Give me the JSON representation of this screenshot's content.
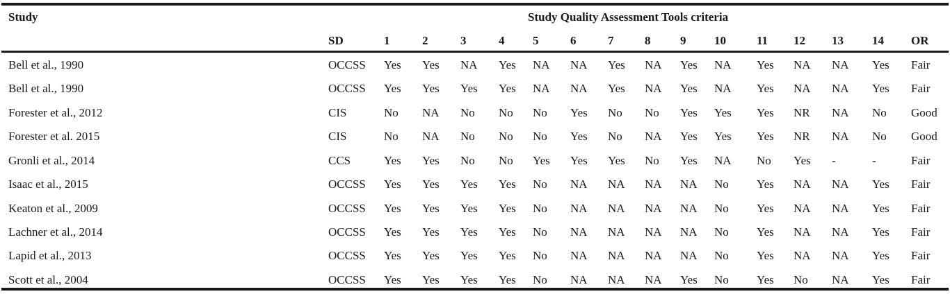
{
  "table": {
    "study_header": "Study",
    "group_header": "Study Quality Assessment Tools criteria",
    "columns": [
      "SD",
      "1",
      "2",
      "3",
      "4",
      "5",
      "6",
      "7",
      "8",
      "9",
      "10",
      "11",
      "12",
      "13",
      "14",
      "OR"
    ],
    "rows": [
      {
        "study": "Bell et al., 1990",
        "cells": [
          "OCCSS",
          "Yes",
          "Yes",
          "NA",
          "Yes",
          "NA",
          "NA",
          "Yes",
          "NA",
          "Yes",
          "NA",
          "Yes",
          "NA",
          "NA",
          "Yes",
          "Fair"
        ]
      },
      {
        "study": "Bell et al., 1990",
        "cells": [
          "OCCSS",
          "Yes",
          "Yes",
          "Yes",
          "Yes",
          "NA",
          "NA",
          "Yes",
          "NA",
          "Yes",
          "NA",
          "Yes",
          "NA",
          "NA",
          "Yes",
          "Fair"
        ]
      },
      {
        "study": "Forester et al., 2012",
        "cells": [
          "CIS",
          "No",
          "NA",
          "No",
          "No",
          "No",
          "Yes",
          "No",
          "No",
          "Yes",
          "Yes",
          "Yes",
          "NR",
          "NA",
          "No",
          "Good"
        ]
      },
      {
        "study": "Forester et al. 2015",
        "cells": [
          "CIS",
          "No",
          "NA",
          "No",
          "No",
          "No",
          "Yes",
          "No",
          "NA",
          "Yes",
          "Yes",
          "Yes",
          "NR",
          "NA",
          "No",
          "Good"
        ]
      },
      {
        "study": "Gronli et al., 2014",
        "cells": [
          "CCS",
          "Yes",
          "Yes",
          "No",
          "No",
          "Yes",
          "Yes",
          "Yes",
          "No",
          "Yes",
          "NA",
          "No",
          "Yes",
          "-",
          "-",
          "Fair"
        ]
      },
      {
        "study": "Isaac et al., 2015",
        "cells": [
          "OCCSS",
          "Yes",
          "Yes",
          "Yes",
          "Yes",
          "No",
          "NA",
          "NA",
          "NA",
          "NA",
          "No",
          "Yes",
          "NA",
          "NA",
          "Yes",
          "Fair"
        ]
      },
      {
        "study": "Keaton et al., 2009",
        "cells": [
          "OCCSS",
          "Yes",
          "Yes",
          "Yes",
          "Yes",
          "No",
          "NA",
          "NA",
          "NA",
          "NA",
          "No",
          "Yes",
          "NA",
          "NA",
          "Yes",
          "Fair"
        ]
      },
      {
        "study": "Lachner et al., 2014",
        "cells": [
          "OCCSS",
          "Yes",
          "Yes",
          "Yes",
          "Yes",
          "No",
          "NA",
          "NA",
          "NA",
          "NA",
          "No",
          "Yes",
          "NA",
          "NA",
          "Yes",
          "Fair"
        ]
      },
      {
        "study": "Lapid et al., 2013",
        "cells": [
          "OCCSS",
          "Yes",
          "Yes",
          "Yes",
          "Yes",
          "No",
          "NA",
          "NA",
          "NA",
          "NA",
          "No",
          "Yes",
          "NA",
          "NA",
          "Yes",
          "Fair"
        ]
      },
      {
        "study": "Scott et al., 2004",
        "cells": [
          "OCCSS",
          "Yes",
          "Yes",
          "Yes",
          "Yes",
          "No",
          "NA",
          "NA",
          "NA",
          "Yes",
          "No",
          "Yes",
          "No",
          "NA",
          "Yes",
          "Fair"
        ]
      }
    ]
  }
}
